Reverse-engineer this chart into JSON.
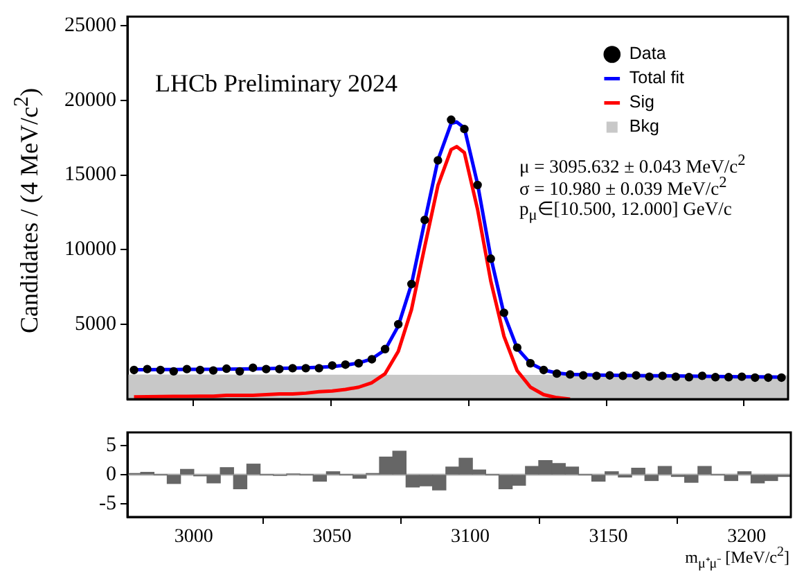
{
  "chart_data": [
    {
      "type": "line",
      "ylabel": "Candidates / (4 MeV/c$^{2}$)",
      "annotations": [
        "LHCb Preliminary 2024",
        "μ = 3095.632 ± 0.043 MeV/c$^{2}$",
        "σ = 10.980 ± 0.039 MeV/c$^{2}$",
        "p$_{μ}$∈[10.500, 12.000] GeV/c"
      ],
      "xlim": [
        2976,
        3216
      ],
      "xticks": [
        3000,
        3050,
        3100,
        3150,
        3200
      ],
      "ylim": [
        0,
        25600
      ],
      "yticks": [
        5000,
        10000,
        15000,
        20000,
        25000
      ],
      "tick_labels": "y",
      "legend": "top right",
      "grid": false,
      "series": [
        {
          "name": "Bkg",
          "type": "area",
          "color": "#c8c8c8",
          "x": [
            2976,
            3216
          ],
          "values": [
            1650,
            1600
          ]
        },
        {
          "name": "Sig",
          "type": "line",
          "color": "#ff0000",
          "x": [
            2978.4,
            2983.2,
            2988,
            2992.8,
            2997.6,
            3002.4,
            3007.2,
            3012,
            3016.8,
            3021.6,
            3026.4,
            3031.2,
            3036,
            3040.8,
            3045.6,
            3050.4,
            3055.2,
            3060,
            3064.8,
            3069.6,
            3074.4,
            3079.2,
            3084,
            3088.8,
            3093.6,
            3095.6,
            3098.4,
            3103.2,
            3108,
            3112.8,
            3117.6,
            3122.4,
            3127.2,
            3132,
            3136.8
          ],
          "values": [
            150,
            160,
            170,
            180,
            190,
            200,
            200,
            250,
            250,
            250,
            300,
            350,
            350,
            400,
            500,
            550,
            650,
            800,
            1100,
            1700,
            3200,
            6000,
            10200,
            14300,
            16700,
            16900,
            16500,
            12700,
            7900,
            4200,
            1900,
            800,
            300,
            100,
            0
          ]
        },
        {
          "name": "Total fit",
          "type": "line",
          "color": "#0000ff",
          "x": [
            2978.4,
            2983.2,
            2988,
            2992.8,
            2997.6,
            3002.4,
            3007.2,
            3012,
            3016.8,
            3021.6,
            3026.4,
            3031.2,
            3036,
            3040.8,
            3045.6,
            3050.4,
            3055.2,
            3060,
            3064.8,
            3069.6,
            3074.4,
            3079.2,
            3084,
            3088.8,
            3093.6,
            3095.6,
            3098.4,
            3103.2,
            3108,
            3112.8,
            3117.6,
            3122.4,
            3127.2,
            3132,
            3136.8,
            3141.6,
            3146.4,
            3151.2,
            3156,
            3160.8,
            3165.6,
            3170.4,
            3175.2,
            3180,
            3184.8,
            3189.6,
            3194.4,
            3199.2,
            3204,
            3208.8,
            3213.6
          ],
          "values": [
            1970,
            1975,
            1980,
            1985,
            1990,
            1995,
            2000,
            2010,
            2020,
            2030,
            2045,
            2060,
            2080,
            2100,
            2130,
            2180,
            2270,
            2420,
            2700,
            3300,
            4900,
            7700,
            11900,
            16000,
            18450,
            18550,
            18150,
            14400,
            9500,
            5700,
            3400,
            2400,
            1950,
            1750,
            1660,
            1630,
            1610,
            1600,
            1590,
            1580,
            1570,
            1560,
            1550,
            1540,
            1530,
            1520,
            1510,
            1500,
            1490,
            1480,
            1470
          ]
        },
        {
          "name": "Data",
          "type": "scatter",
          "marker": "circle",
          "color": "#000000",
          "x": [
            2978.4,
            2983.2,
            2988,
            2992.8,
            2997.6,
            3002.4,
            3007.2,
            3012,
            3016.8,
            3021.6,
            3026.4,
            3031.2,
            3036,
            3040.8,
            3045.6,
            3050.4,
            3055.2,
            3060,
            3064.8,
            3069.6,
            3074.4,
            3079.2,
            3084,
            3088.8,
            3093.6,
            3098.4,
            3103.2,
            3108,
            3112.8,
            3117.6,
            3122.4,
            3127.2,
            3132,
            3136.8,
            3141.6,
            3146.4,
            3151.2,
            3156,
            3160.8,
            3165.6,
            3170.4,
            3175.2,
            3180,
            3184.8,
            3189.6,
            3194.4,
            3199.2,
            3204,
            3208.8,
            3213.6
          ],
          "values": [
            1950,
            2010,
            1950,
            1860,
            2010,
            1950,
            1920,
            2040,
            1860,
            2100,
            2010,
            2010,
            2070,
            2070,
            2070,
            2250,
            2310,
            2400,
            2670,
            3350,
            5010,
            7700,
            11990,
            15980,
            18700,
            18080,
            14330,
            9400,
            5780,
            3450,
            2400,
            1950,
            1710,
            1650,
            1590,
            1560,
            1590,
            1560,
            1590,
            1500,
            1560,
            1500,
            1470,
            1560,
            1470,
            1470,
            1500,
            1440,
            1440,
            1440
          ]
        }
      ]
    },
    {
      "type": "histogram",
      "xlabel": "m$_{μ⁺μ⁻}$ [MeV/c$^{2}$]",
      "color": "#666666",
      "xlim": [
        2976,
        3216
      ],
      "xticks": [
        3000,
        3050,
        3100,
        3150,
        3200
      ],
      "ylim": [
        -7.2,
        7.2
      ],
      "yticks": [
        -5,
        0,
        5
      ],
      "grid": false,
      "ref_lines": [
        {
          "axis": "y",
          "value": 0,
          "color": "#b4b4b4"
        }
      ],
      "bins": [
        2976,
        2980.8,
        2985.6,
        2990.4,
        2995.2,
        3000,
        3004.8,
        3009.6,
        3014.4,
        3019.2,
        3024,
        3028.8,
        3033.6,
        3038.4,
        3043.2,
        3048,
        3052.8,
        3057.6,
        3062.4,
        3067.2,
        3072,
        3076.8,
        3081.6,
        3086.4,
        3091.2,
        3096,
        3100.8,
        3105.6,
        3110.4,
        3115.2,
        3120,
        3124.8,
        3129.6,
        3134.4,
        3139.2,
        3144,
        3148.8,
        3153.6,
        3158.4,
        3163.2,
        3168,
        3172.8,
        3177.6,
        3182.4,
        3187.2,
        3192,
        3196.8,
        3201.6,
        3206.4,
        3211.2,
        3216
      ],
      "values": [
        0.2,
        0.4,
        0,
        -1.5,
        0.9,
        -0.2,
        -1.4,
        1.2,
        -2.4,
        1.8,
        0,
        -0.1,
        0.1,
        0,
        -1.1,
        0.5,
        0,
        -0.6,
        0.2,
        3.0,
        4.0,
        -2.1,
        -1.9,
        -2.6,
        1.3,
        2.8,
        0.8,
        0,
        -2.4,
        -1.8,
        1.4,
        2.4,
        1.9,
        1.3,
        0,
        -1.1,
        0.5,
        -0.4,
        1.1,
        -1.0,
        1.4,
        -0.3,
        -1.3,
        1.4,
        0,
        -1.0,
        0.5,
        -1.4,
        -1.0,
        -0.3
      ]
    }
  ]
}
